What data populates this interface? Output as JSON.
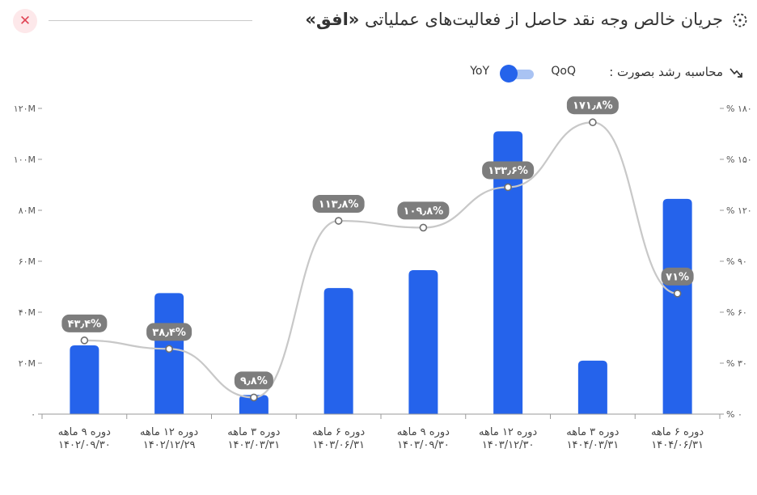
{
  "header": {
    "title_prefix": "جریان خالص وجه نقد حاصل از فعالیت‌های عملیاتی ",
    "title_company": "«افق»",
    "close_symbol": "✕"
  },
  "controls": {
    "growth_label": "محاسبه رشد بصورت :",
    "qoq_label": "QoQ",
    "yoy_label": "YoY",
    "mode": "YoY"
  },
  "colors": {
    "bar": "#2563eb",
    "line": "#c8c8c8",
    "bubble": "#7d7d7d",
    "close_bg": "#fde8ea",
    "close_fg": "#e04455"
  },
  "chart_data": {
    "type": "bar",
    "categories": [
      [
        "دوره ۹ ماهه",
        "۱۴۰۲/۰۹/۳۰"
      ],
      [
        "دوره ۱۲ ماهه",
        "۱۴۰۲/۱۲/۲۹"
      ],
      [
        "دوره ۳ ماهه",
        "۱۴۰۳/۰۳/۳۱"
      ],
      [
        "دوره ۶ ماهه",
        "۱۴۰۳/۰۶/۳۱"
      ],
      [
        "دوره ۹ ماهه",
        "۱۴۰۳/۰۹/۳۰"
      ],
      [
        "دوره ۱۲ ماهه",
        "۱۴۰۳/۱۲/۳۰"
      ],
      [
        "دوره ۳ ماهه",
        "۱۴۰۴/۰۳/۳۱"
      ],
      [
        "دوره ۶ ماهه",
        "۱۴۰۴/۰۶/۳۱"
      ]
    ],
    "bar_values": [
      27,
      47.5,
      7.5,
      49.5,
      56.5,
      111,
      21,
      84.5
    ],
    "growth_values": [
      43.4,
      38.4,
      9.8,
      113.8,
      109.8,
      133.6,
      171.8,
      71
    ],
    "growth_labels": [
      "۴۳٫۴%",
      "۳۸٫۴%",
      "۹٫۸%",
      "۱۱۳٫۸%",
      "۱۰۹٫۸%",
      "۱۳۳٫۶%",
      "۱۷۱٫۸%",
      "۷۱%"
    ],
    "y_left": {
      "range": [
        0,
        120
      ],
      "ticks": [
        0,
        20,
        40,
        60,
        80,
        100,
        120
      ],
      "tick_labels": [
        "۰",
        "۲۰M",
        "۴۰M",
        "۶۰M",
        "۸۰M",
        "۱۰۰M",
        "۱۲۰M"
      ]
    },
    "y_right": {
      "range": [
        0,
        180
      ],
      "ticks": [
        0,
        30,
        60,
        90,
        120,
        150,
        180
      ],
      "tick_labels": [
        "% ۰",
        "% ۳۰",
        "% ۶۰",
        "% ۹۰",
        "% ۱۲۰",
        "% ۱۵۰",
        "% ۱۸۰"
      ]
    },
    "grid": false
  }
}
